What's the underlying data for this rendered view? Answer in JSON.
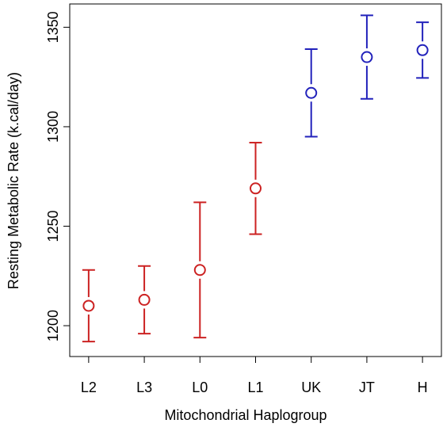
{
  "chart_data": {
    "type": "errorbar",
    "x_label": "Mitochondrial Haplogroup",
    "y_label": "Resting Metabolic Rate (k.cal/day)",
    "categories": [
      "L2",
      "L3",
      "L0",
      "L1",
      "UK",
      "JT",
      "H"
    ],
    "values": [
      1210,
      1213,
      1228,
      1269,
      1317,
      1335,
      1338.5
    ],
    "errors": [
      18,
      17,
      34,
      23,
      22,
      21,
      14
    ],
    "colors": [
      "#cc2222",
      "#cc2222",
      "#cc2222",
      "#cc2222",
      "#2222bb",
      "#2222bb",
      "#2222bb"
    ],
    "ylim": [
      1184.5,
      1361.7
    ],
    "yticks": [
      1200,
      1250,
      1300,
      1350
    ],
    "grid": false
  }
}
